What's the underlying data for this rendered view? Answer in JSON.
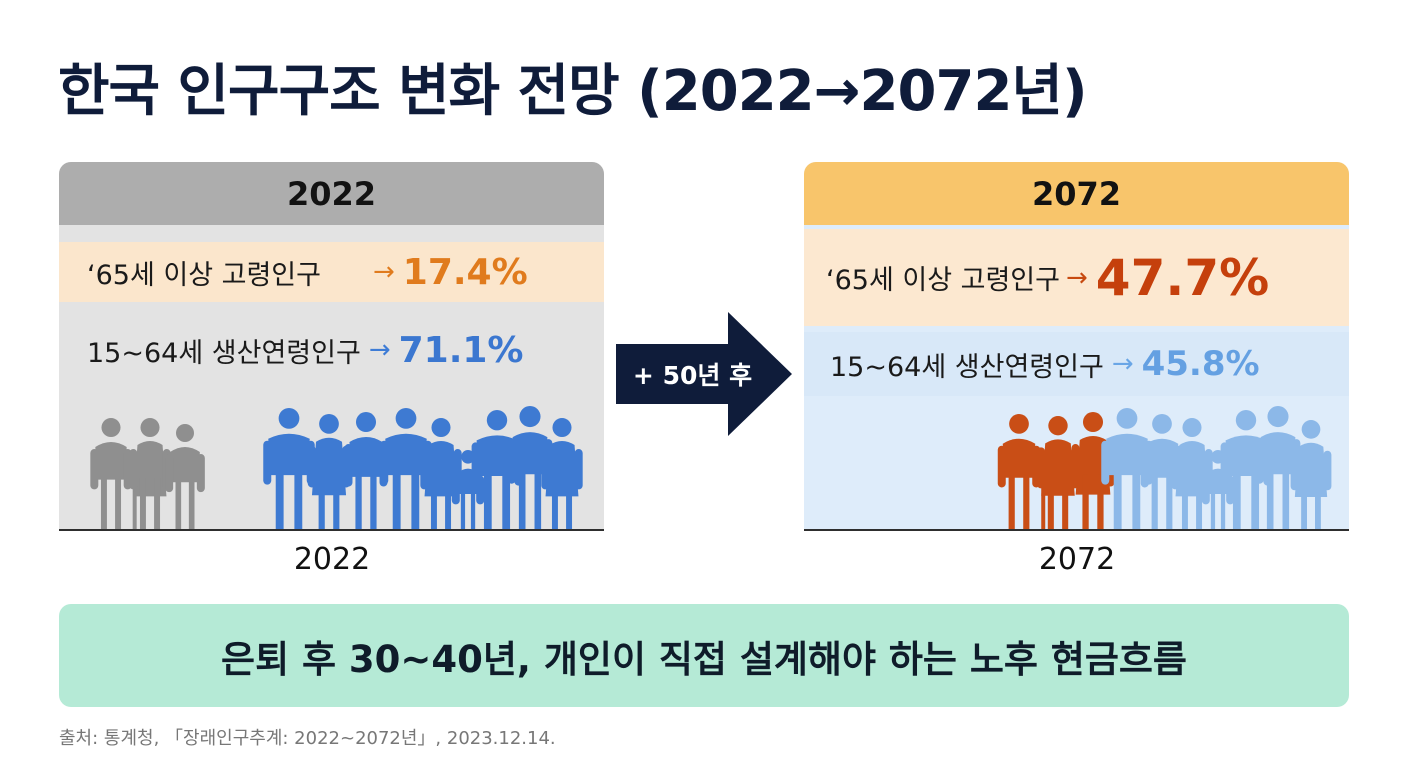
{
  "title": "한국 인구구조 변화 전망 (2022→2072년)",
  "left": {
    "year": "2022",
    "elderly": {
      "label": "‘65세 이상 고령인구",
      "arrow": "→",
      "value": "17.4%"
    },
    "working": {
      "label": "15~64세 생산연령인구",
      "arrow": "→",
      "value": "71.1%"
    },
    "axis_label": "2022"
  },
  "transition": {
    "label": "+ 50년 후"
  },
  "right": {
    "year": "2072",
    "elderly": {
      "label": "‘65세 이상 고령인구",
      "arrow": "→",
      "value": "47.7%"
    },
    "working": {
      "label": "15~64세 생산연령인구",
      "arrow": "→",
      "value": "45.8%"
    },
    "axis_label": "2072"
  },
  "banner": "은퇴 후 30~40년, 개인이 직접 설계해야 하는 노후 현금흐름",
  "source": "출처: 통계청, 「장래인구추계: 2022~2072년」, 2023.12.14.",
  "colors": {
    "elderly_gray": "#8f8f8f",
    "working_blue": "#3e7ad2",
    "elderly_orange": "#c94e16",
    "working_lightblue": "#8cb8e8"
  }
}
